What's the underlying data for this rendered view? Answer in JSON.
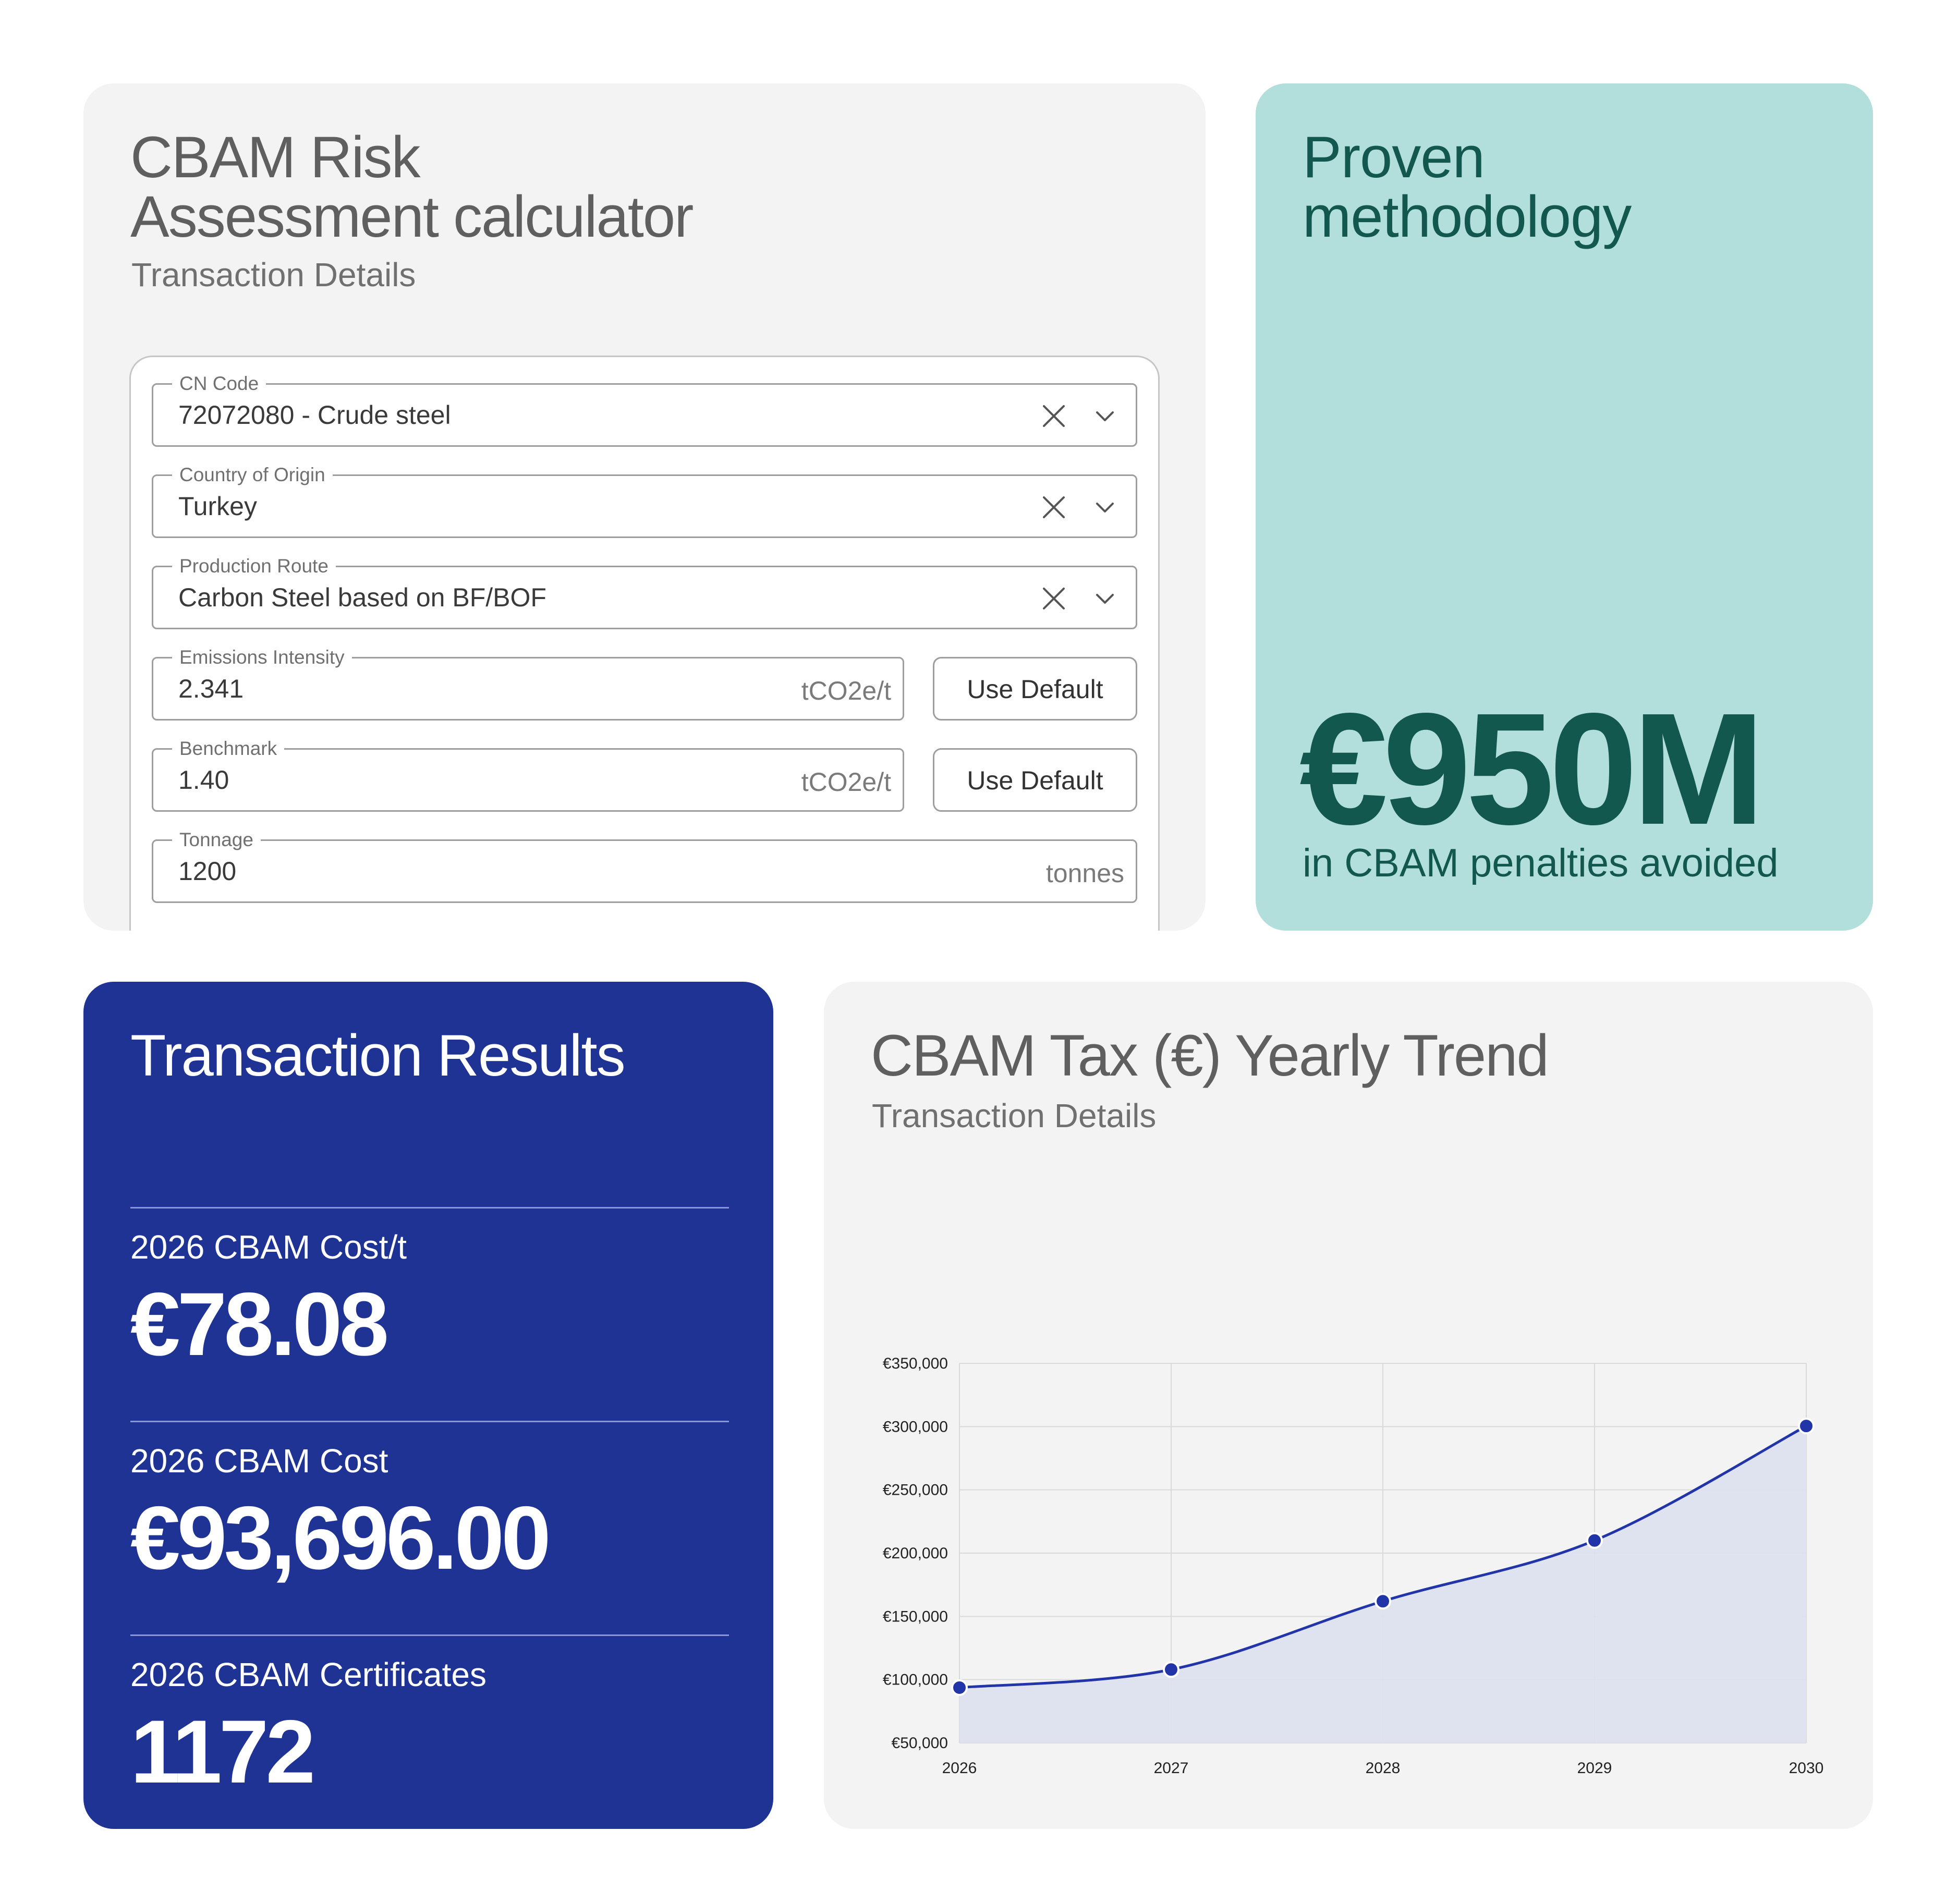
{
  "calculator": {
    "title_line1": "CBAM Risk",
    "title_line2": "Assessment calculator",
    "subtitle": "Transaction Details",
    "fields": {
      "cn_code": {
        "label": "CN Code",
        "value": "72072080 - Crude steel"
      },
      "country": {
        "label": "Country of Origin",
        "value": "Turkey"
      },
      "route": {
        "label": "Production Route",
        "value": "Carbon Steel based on BF/BOF"
      },
      "emissions": {
        "label": "Emissions Intensity",
        "value": "2.341",
        "unit": "tCO2e/t"
      },
      "benchmark": {
        "label": "Benchmark",
        "value": "1.40",
        "unit": "tCO2e/t"
      },
      "tonnage": {
        "label": "Tonnage",
        "value": "1200",
        "unit": "tonnes"
      }
    },
    "use_default_label": "Use Default",
    "icons": {
      "clear": "close-icon",
      "expand": "chevron-down-icon"
    }
  },
  "methodology": {
    "title_line1": "Proven",
    "title_line2": "methodology",
    "value": "€950M",
    "caption": "in CBAM penalties avoided"
  },
  "results": {
    "title": "Transaction Results",
    "items": [
      {
        "label": "2026 CBAM Cost/t",
        "value": "€78.08"
      },
      {
        "label": "2026 CBAM Cost",
        "value": "€93,696.00"
      },
      {
        "label": "2026 CBAM Certificates",
        "value": "1172"
      }
    ]
  },
  "colors": {
    "calc_bg": "#f3f3f3",
    "method_bg": "#b2dfdb",
    "method_text": "#12584f",
    "results_bg": "#1f3394",
    "chart_line": "#2235a8",
    "chart_fill": "#dde0ee"
  },
  "chart": {
    "title": "CBAM Tax (€) Yearly Trend",
    "subtitle": "Transaction Details"
  },
  "chart_data": {
    "type": "area",
    "x": [
      "2026",
      "2027",
      "2028",
      "2029",
      "2030"
    ],
    "series": [
      {
        "values": [
          93696,
          108000,
          162000,
          210000,
          300500
        ]
      }
    ],
    "ylim": [
      50000,
      350000
    ],
    "yticks": [
      50000,
      100000,
      150000,
      200000,
      250000,
      300000,
      350000
    ],
    "ytick_labels": [
      "€50,000",
      "€100,000",
      "€150,000",
      "€200,000",
      "€250,000",
      "€300,000",
      "€350,000"
    ],
    "grid": true,
    "legend": "none"
  }
}
